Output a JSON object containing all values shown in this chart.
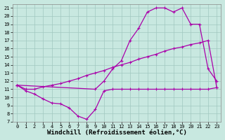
{
  "xlabel": "Windchill (Refroidissement éolien,°C)",
  "bg_color": "#c8e8e0",
  "line_color": "#aa00aa",
  "grid_color": "#a0c8c0",
  "xlim": [
    -0.5,
    23.5
  ],
  "ylim": [
    7,
    21.5
  ],
  "xticks": [
    0,
    1,
    2,
    3,
    4,
    5,
    6,
    7,
    8,
    9,
    10,
    11,
    12,
    13,
    14,
    15,
    16,
    17,
    18,
    19,
    20,
    21,
    22,
    23
  ],
  "yticks": [
    7,
    8,
    9,
    10,
    11,
    12,
    13,
    14,
    15,
    16,
    17,
    18,
    19,
    20,
    21
  ],
  "line1_x": [
    0,
    1,
    2,
    3,
    4,
    5,
    6,
    7,
    8,
    9,
    10,
    11,
    12,
    13,
    14,
    15,
    16,
    17,
    18,
    19,
    20,
    21,
    22,
    23
  ],
  "line1_y": [
    11.5,
    10.8,
    10.4,
    9.8,
    9.3,
    9.2,
    8.7,
    7.7,
    7.3,
    8.5,
    10.8,
    11.0,
    11.0,
    11.0,
    11.0,
    11.0,
    11.0,
    11.0,
    11.0,
    11.0,
    11.0,
    11.0,
    11.0,
    11.2
  ],
  "line2_x": [
    0,
    1,
    2,
    3,
    4,
    5,
    6,
    7,
    8,
    9,
    10,
    11,
    12,
    13,
    14,
    15,
    16,
    17,
    18,
    19,
    20,
    21,
    22,
    23
  ],
  "line2_y": [
    11.5,
    11.0,
    11.0,
    11.3,
    11.5,
    11.7,
    12.0,
    12.3,
    12.7,
    13.0,
    13.3,
    13.7,
    14.0,
    14.3,
    14.7,
    15.0,
    15.3,
    15.7,
    16.0,
    16.2,
    16.5,
    16.7,
    17.0,
    11.2
  ],
  "line3_x": [
    0,
    9,
    10,
    11,
    12,
    13,
    14,
    15,
    16,
    17,
    18,
    19,
    20,
    21,
    22,
    23
  ],
  "line3_y": [
    11.5,
    11.0,
    12.0,
    13.5,
    14.5,
    17.0,
    18.5,
    20.5,
    21.0,
    21.0,
    20.5,
    21.0,
    19.0,
    19.0,
    13.5,
    12.0
  ],
  "marker": "+",
  "markersize": 3,
  "linewidth": 0.9,
  "xlabel_fontsize": 6.5,
  "tick_fontsize": 5.0,
  "ylabel_fontsize": 5.5
}
